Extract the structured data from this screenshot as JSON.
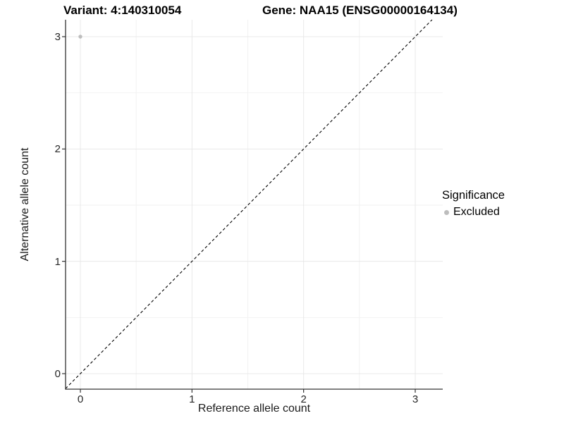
{
  "chart_data": {
    "type": "scatter",
    "titles": {
      "left": "Variant: 4:140310054",
      "right": "Gene: NAA15 (ENSG00000164134)"
    },
    "xlabel": "Reference allele count",
    "ylabel": "Alternative allele count",
    "x_ticks": [
      "0",
      "1",
      "2",
      "3"
    ],
    "y_ticks": [
      "0",
      "1",
      "2",
      "3"
    ],
    "x_tick_values": [
      0,
      1,
      2,
      3
    ],
    "y_tick_values": [
      0,
      1,
      2,
      3
    ],
    "xlim": [
      -0.133,
      3.247
    ],
    "ylim": [
      -0.138,
      3.151
    ],
    "grid": {
      "major": true,
      "minor": true
    },
    "points": [
      {
        "x": 0,
        "y": 3,
        "series": "Excluded"
      }
    ],
    "identity_line": {
      "style": "dashed",
      "color": "#000000"
    },
    "legend": {
      "title": "Significance",
      "position": "right",
      "items": [
        {
          "label": "Excluded",
          "color": "#bdbdbd"
        }
      ]
    },
    "colors": {
      "point": "#bdbdbd",
      "grid_major": "#e8e8e8",
      "grid_minor": "#f2f2f2",
      "axis_line": "#333333",
      "tick_mark": "#333333"
    }
  }
}
